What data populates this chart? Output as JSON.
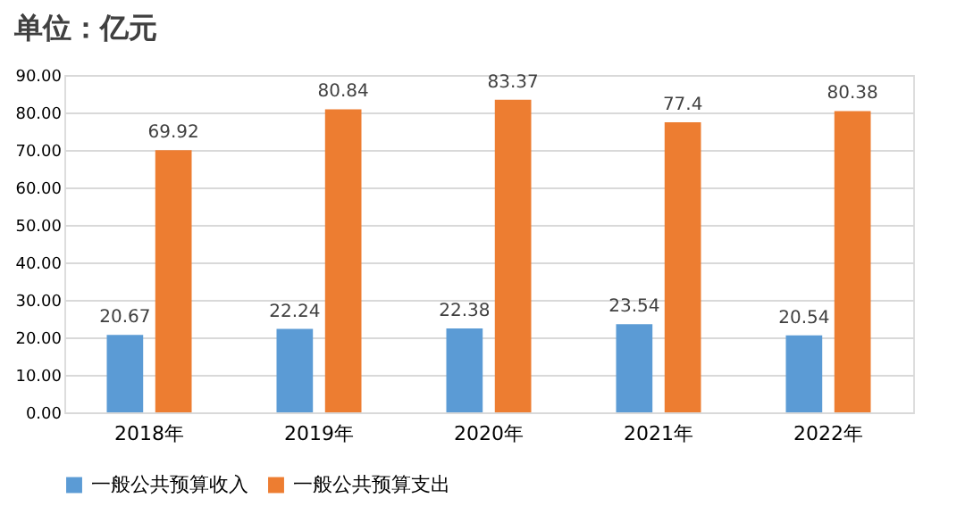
{
  "chart_data": {
    "type": "bar",
    "title": "单位：亿元",
    "categories": [
      "2018年",
      "2019年",
      "2020年",
      "2021年",
      "2022年"
    ],
    "series": [
      {
        "name": "一般公共预算收入",
        "color": "#5b9bd5",
        "values": [
          20.67,
          22.24,
          22.38,
          23.54,
          20.54
        ]
      },
      {
        "name": "一般公共预算支出",
        "color": "#ed7d31",
        "values": [
          69.92,
          80.84,
          83.37,
          77.4,
          80.38
        ]
      }
    ],
    "ylim": [
      0,
      90
    ],
    "yticks": [
      {
        "value": 0,
        "label": "0.00"
      },
      {
        "value": 10,
        "label": "10.00"
      },
      {
        "value": 20,
        "label": "20.00"
      },
      {
        "value": 30,
        "label": "30.00"
      },
      {
        "value": 40,
        "label": "40.00"
      },
      {
        "value": 50,
        "label": "50.00"
      },
      {
        "value": 60,
        "label": "60.00"
      },
      {
        "value": 70,
        "label": "70.00"
      },
      {
        "value": 80,
        "label": "80.00"
      },
      {
        "value": 90,
        "label": "90.00"
      }
    ],
    "grid": "y",
    "legend": "bottom",
    "data_labels": true
  }
}
